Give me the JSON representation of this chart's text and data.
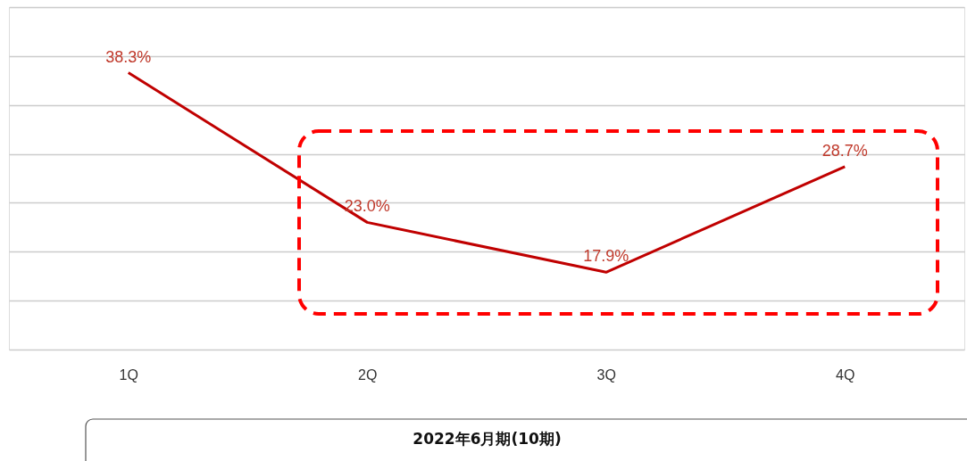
{
  "chart_data": {
    "type": "line",
    "categories": [
      "1Q",
      "2Q",
      "3Q",
      "4Q"
    ],
    "series": [
      {
        "color": "#c00000",
        "values": [
          38.3,
          23.0,
          17.9,
          28.7
        ],
        "value_labels": [
          "38.3%",
          "23.0%",
          "17.9%",
          "28.7%"
        ]
      }
    ],
    "xlabel": "2022年6月期(10期)",
    "tick_labels": "x",
    "grid": "y",
    "marker": "none",
    "line_style": "solid"
  }
}
